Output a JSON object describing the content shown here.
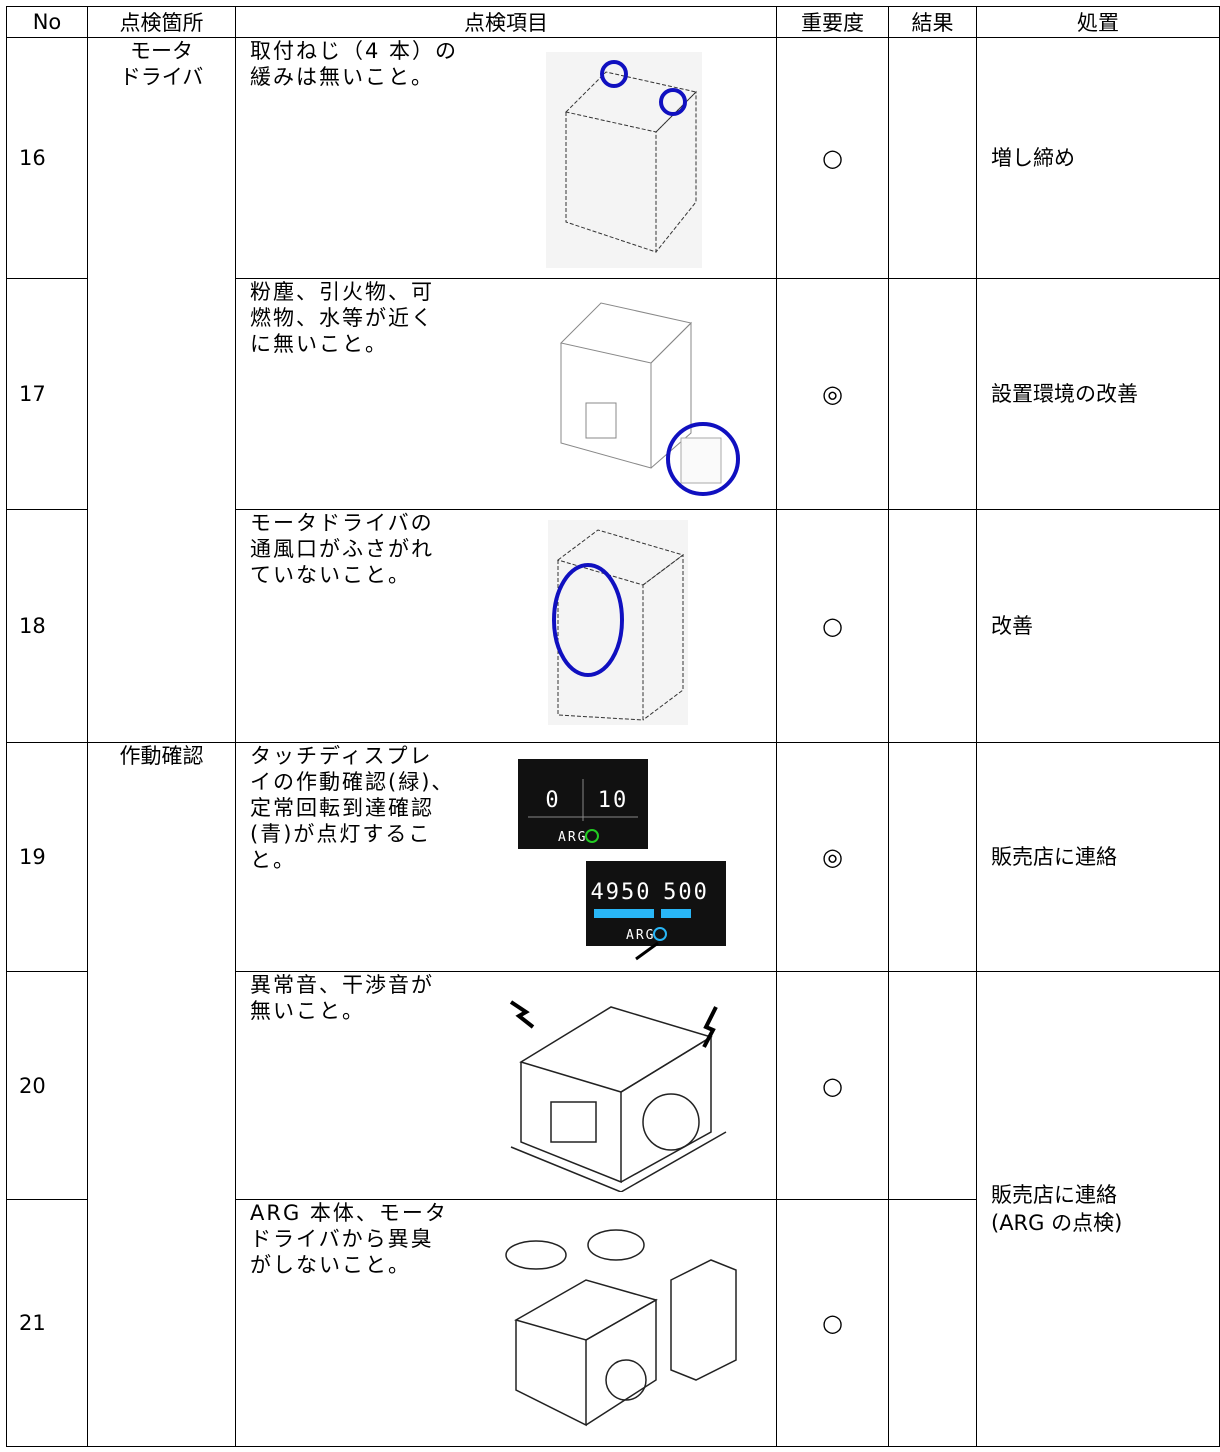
{
  "header": [
    "No",
    "点検箇所",
    "点検項目",
    "重要度",
    "結果",
    "処置"
  ],
  "locations": [
    {
      "lines": [
        "モータ",
        "ドライバ"
      ]
    },
    {
      "lines": [
        "作動確認"
      ]
    }
  ],
  "rows": [
    {
      "no": "16",
      "item": [
        "取付ねじ（4 本）の",
        "緩みは無いこと。"
      ],
      "importance": "○",
      "action": [
        "増し締め"
      ]
    },
    {
      "no": "17",
      "item": [
        "粉塵、引火物、可",
        "燃物、水等が近く",
        "に無いこと。"
      ],
      "importance": "◎",
      "action": [
        "設置環境の改善"
      ]
    },
    {
      "no": "18",
      "item": [
        "モータドライバの",
        "通風口がふさがれ",
        "ていないこと。"
      ],
      "importance": "○",
      "action": [
        "改善"
      ]
    },
    {
      "no": "19",
      "item": [
        "タッチディスプレ",
        "イの作動確認(緑)、",
        "定常回転到達確認",
        "(青)が点灯するこ",
        "と。"
      ],
      "importance": "◎",
      "action": [
        "販売店に連絡"
      ],
      "display_1": {
        "rpm": "0",
        "power": "10",
        "brand": "ARG"
      },
      "display_2": {
        "rpm": "4950",
        "power": "500",
        "brand": "ARG"
      }
    },
    {
      "no": "20",
      "item": [
        "異常音、干渉音が",
        "無いこと。"
      ],
      "importance": "○",
      "action": [
        "販売店に連絡",
        "(ARG の点検)"
      ]
    },
    {
      "no": "21",
      "item": [
        "ARG 本体、モータ",
        "ドライバから異臭",
        "がしないこと。"
      ],
      "importance": "○"
    }
  ]
}
